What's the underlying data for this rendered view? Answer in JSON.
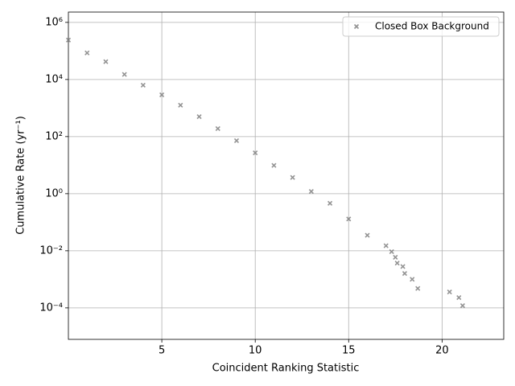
{
  "chart_data": {
    "type": "scatter",
    "xlabel": "Coincident Ranking Statistic",
    "ylabel": "Cumulative Rate (yr⁻¹)",
    "series": [
      {
        "name": "Closed Box Background",
        "color": "#808080",
        "marker": "x",
        "x": [
          0,
          1,
          2,
          3,
          4,
          5,
          6,
          7,
          8,
          9,
          10,
          11,
          12,
          13,
          14,
          15,
          16,
          17,
          17.3,
          17.5,
          17.6,
          17.9,
          18.0,
          18.4,
          18.7,
          20.4,
          20.9,
          21.1
        ],
        "values": [
          240000,
          85000,
          42000,
          15000,
          6300,
          2900,
          1260,
          500,
          190,
          72,
          27,
          9.8,
          3.7,
          1.2,
          0.46,
          0.13,
          0.035,
          0.015,
          0.0093,
          0.0059,
          0.0037,
          0.0028,
          0.0016,
          0.001,
          0.00048,
          0.00036,
          0.00023,
          0.00012
        ]
      }
    ],
    "xlim": [
      0,
      23.3
    ],
    "ylim": [
      7.9e-06,
      2300000
    ],
    "ylog": true,
    "xticks": [
      5,
      10,
      15,
      20
    ],
    "yticks": [
      {
        "value": 1000000,
        "label": "10⁶"
      },
      {
        "value": 10000,
        "label": "10⁴"
      },
      {
        "value": 100,
        "label": "10²"
      },
      {
        "value": 1,
        "label": "10⁰"
      },
      {
        "value": 0.01,
        "label": "10⁻²"
      },
      {
        "value": 0.0001,
        "label": "10⁻⁴"
      }
    ],
    "grid": true,
    "legend": "upper right"
  }
}
